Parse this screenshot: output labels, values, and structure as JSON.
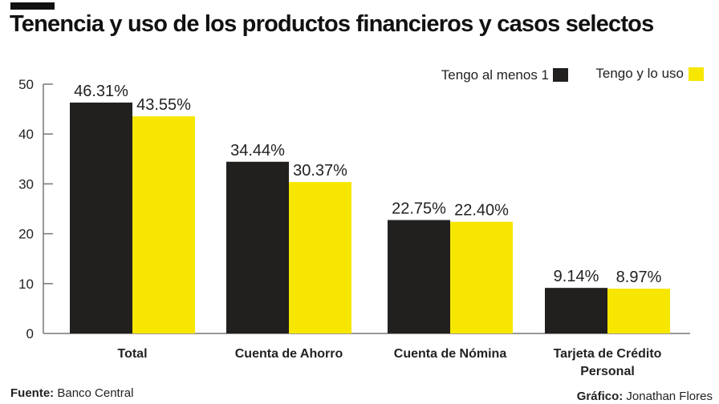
{
  "title": "Tenencia y uso de los productos financieros y casos selectos",
  "footer": {
    "source_label": "Fuente:",
    "source": "Banco Central",
    "credit_label": "Gráfico:",
    "credit": "Jonathan Flores"
  },
  "colors": {
    "series1": "#221f1f",
    "series2": "#f7e600"
  },
  "chart_data": {
    "type": "bar",
    "categories": [
      "Total",
      "Cuenta de Ahorro",
      "Cuenta de Nómina",
      "Tarjeta de Crédito Personal"
    ],
    "series": [
      {
        "name": "Tengo al menos 1",
        "values": [
          46.31,
          34.44,
          22.75,
          9.14
        ],
        "labels": [
          "46.31%",
          "34.44%",
          "22.75%",
          "9.14%"
        ]
      },
      {
        "name": "Tengo y lo uso",
        "values": [
          43.55,
          30.37,
          22.4,
          8.97
        ],
        "labels": [
          "43.55%",
          "30.37%",
          "22.40%",
          "8.97%"
        ]
      }
    ],
    "yticks": [
      "0",
      "10",
      "20",
      "30",
      "40",
      "50"
    ],
    "ylim": [
      0,
      50
    ],
    "legend": "top-right",
    "grid": false
  }
}
